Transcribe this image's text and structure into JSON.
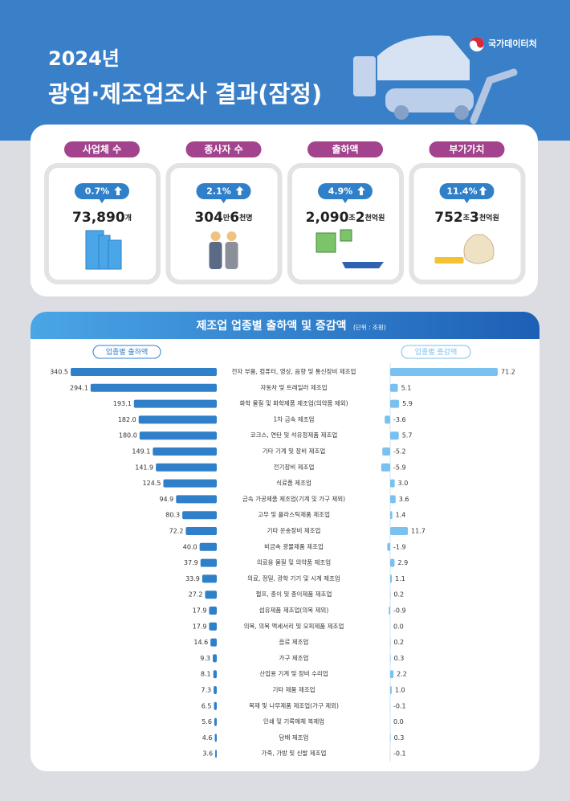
{
  "header": {
    "year": "2024년",
    "title": "광업·제조업조사 결과(잠정)",
    "logo": "국가데이터처"
  },
  "cards": [
    {
      "label": "사업체 수",
      "change": "0.7%",
      "value_parts": [
        "73,890",
        "개"
      ]
    },
    {
      "label": "종사자 수",
      "change": "2.1%",
      "value_parts": [
        "304",
        "만",
        "6",
        "천명"
      ]
    },
    {
      "label": "출하액",
      "change": "4.9%",
      "value_parts": [
        "2,090",
        "조",
        "2",
        "천억원"
      ]
    },
    {
      "label": "부가가치",
      "change": "11.4%",
      "value_parts": [
        "752",
        "조",
        "3",
        "천억원"
      ]
    }
  ],
  "chart_data": {
    "type": "bar",
    "title": "제조업 업종별 출하액 및 증감액",
    "unit": "(단위 : 조원)",
    "categories": [
      "전자 부품, 컴퓨터, 영상, 음향 및 통신장비 제조업",
      "자동차 및 트레일러 제조업",
      "화학 물질 및 화학제품 제조업(의약품 제외)",
      "1차 금속 제조업",
      "코크스, 연탄 및 석유정제품 제조업",
      "기타 기계 및 장비 제조업",
      "전기장비 제조업",
      "식료품 제조업",
      "금속 가공제품 제조업(기계 및 가구 제외)",
      "고무 및 플라스틱제품 제조업",
      "기타 운송장비 제조업",
      "비금속 광물제품 제조업",
      "의료용 물질 및 의약품 제조업",
      "의료, 정밀, 광학 기기 및 시계 제조업",
      "펄프, 종이 및 종이제품 제조업",
      "섬유제품 제조업(의복 제외)",
      "의복, 의복 액세서리 및 모피제품 제조업",
      "음료 제조업",
      "가구 제조업",
      "산업용 기계 및 장비 수리업",
      "기타 제품 제조업",
      "목재 및 나무제품 제조업(가구 제외)",
      "인쇄 및 기록매체 복제업",
      "담배 제조업",
      "가죽, 가방 및 신발 제조업"
    ],
    "series": [
      {
        "name": "업종별 출하액",
        "color": "#2f80c9",
        "values": [
          340.5,
          294.1,
          193.1,
          182.0,
          180.0,
          149.1,
          141.9,
          124.5,
          94.9,
          80.3,
          72.2,
          40.0,
          37.9,
          33.9,
          27.2,
          17.9,
          17.9,
          14.6,
          9.3,
          8.1,
          7.3,
          6.5,
          5.6,
          4.6,
          3.6
        ],
        "value_labels": [
          "340.5",
          "294.1",
          "193.1",
          "182.0",
          "180.0",
          "149.1",
          "141.9",
          "124.5",
          "94.9",
          "80.3",
          "72.2",
          "40.0",
          "37.9",
          "33.9",
          "27.2",
          "17.9",
          "17.9",
          "14.6",
          "9.3",
          "8.1",
          "7.3",
          "6.5",
          "5.6",
          "4.6",
          "3.6"
        ]
      },
      {
        "name": "업종별 증감액",
        "color": "#79c1ee",
        "values": [
          71.2,
          5.1,
          5.9,
          -3.6,
          5.7,
          -5.2,
          -5.9,
          3.0,
          3.6,
          1.4,
          11.7,
          -1.9,
          2.9,
          1.1,
          0.2,
          -0.9,
          0.0,
          0.2,
          0.3,
          2.2,
          1.0,
          -0.1,
          0.0,
          0.3,
          -0.1
        ],
        "value_labels": [
          "71.2",
          "5.1",
          "5.9",
          "-3.6",
          "5.7",
          "-5.2",
          "-5.9",
          "3.0",
          "3.6",
          "1.4",
          "11.7",
          "-1.9",
          "2.9",
          "1.1",
          "0.2",
          "-0.9",
          "0.0",
          "0.2",
          "0.3",
          "2.2",
          "1.0",
          "-0.1",
          "0.0",
          "0.3",
          "-0.1"
        ]
      }
    ]
  }
}
